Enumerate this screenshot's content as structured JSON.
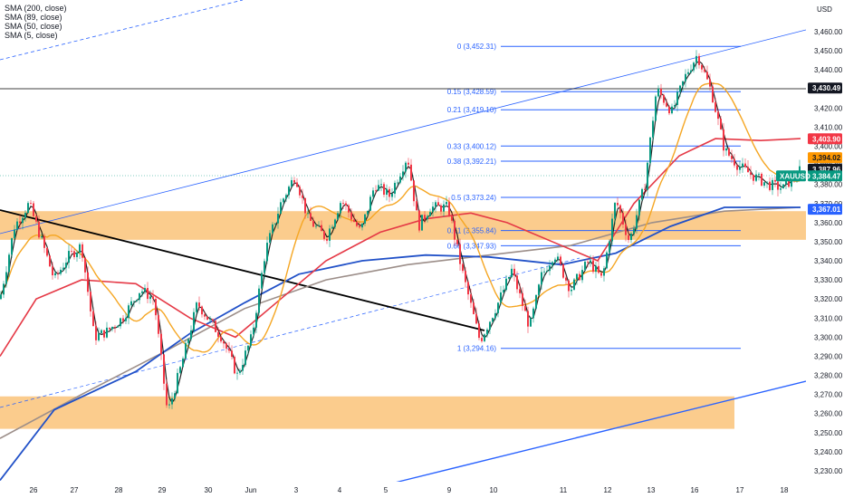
{
  "chart_data": {
    "type": "candlestick",
    "symbol": "XAUUSD",
    "currency": "USD",
    "legend": [
      "SMA (200, close)",
      "SMA (89, close)",
      "SMA (50, close)",
      "SMA (5, close)"
    ],
    "ylim": [
      3225,
      3470
    ],
    "y_ticks": [
      3230,
      3240,
      3250,
      3260,
      3270,
      3280,
      3290,
      3300,
      3310,
      3320,
      3330,
      3340,
      3350,
      3360,
      3370,
      3380,
      3390,
      3400,
      3410,
      3420,
      3430,
      3440,
      3450,
      3460
    ],
    "y_tick_labels": [
      "3,230.00",
      "3,240.00",
      "3,250.00",
      "3,260.00",
      "3,270.00",
      "3,280.00",
      "3,290.00",
      "3,300.00",
      "3,310.00",
      "3,320.00",
      "3,330.00",
      "3,340.00",
      "3,350.00",
      "3,360.00",
      "3,370.00",
      "3,380.00",
      "3,390.00",
      "3,400.00",
      "3,410.00",
      "3,420.00",
      "3,430.00",
      "3,440.00",
      "3,450.00",
      "3,460.00"
    ],
    "x_labels": [
      "26",
      "27",
      "28",
      "29",
      "30",
      "Jun",
      "3",
      "4",
      "5",
      "9",
      "10",
      "11",
      "12",
      "13",
      "16",
      "17",
      "18"
    ],
    "fib_levels": [
      {
        "ratio": "0",
        "value": 3452.31,
        "label": "0 (3,452.31)"
      },
      {
        "ratio": "0.15",
        "value": 3428.59,
        "label": "0.15 (3,428.59)"
      },
      {
        "ratio": "0.21",
        "value": 3419.1,
        "label": "0.21 (3,419.10)"
      },
      {
        "ratio": "0.33",
        "value": 3400.12,
        "label": "0.33 (3,400.12)"
      },
      {
        "ratio": "0.38",
        "value": 3392.21,
        "label": "0.38 (3,392.21)"
      },
      {
        "ratio": "0.5",
        "value": 3373.24,
        "label": "0.5 (3,373.24)"
      },
      {
        "ratio": "0.61",
        "value": 3355.84,
        "label": "0.61 (3,355.84)"
      },
      {
        "ratio": "0.66",
        "value": 3347.93,
        "label": "0.66 (3,347.93)"
      },
      {
        "ratio": "1",
        "value": 3294.16,
        "label": "1 (3,294.16)"
      }
    ],
    "zones": [
      {
        "name": "upper-zone",
        "low": 3351,
        "high": 3366
      },
      {
        "name": "lower-zone",
        "low": 3252,
        "high": 3269
      }
    ],
    "horizontal_level": 3430.49,
    "price_tags": [
      {
        "value": 3430.49,
        "label": "3,430.49",
        "bg": "#131722",
        "fg": "#ffffff"
      },
      {
        "value": 3403.9,
        "label": "3,403.90",
        "bg": "#f23645",
        "fg": "#ffffff"
      },
      {
        "value": 3394.02,
        "label": "3,394.02",
        "bg": "#ff9800",
        "fg": "#131722"
      },
      {
        "value": 3387.96,
        "label": "3,387.96",
        "bg": "#131722",
        "fg": "#ffffff"
      },
      {
        "value": 3384.47,
        "label": "3,384.47",
        "bg": "#089981",
        "fg": "#ffffff",
        "symbol": "XAUUSD"
      },
      {
        "value": 3367.01,
        "label": "3,367.01",
        "bg": "#2962ff",
        "fg": "#ffffff"
      }
    ],
    "colors": {
      "up": "#089981",
      "down": "#f23645",
      "sma200": "#9c8e89",
      "sma89": "#2151c8",
      "sma50": "#e53946",
      "sma5": "#f5a623",
      "fib": "#2962ff",
      "zone": "#fbc987",
      "trendline": "#000000"
    }
  }
}
